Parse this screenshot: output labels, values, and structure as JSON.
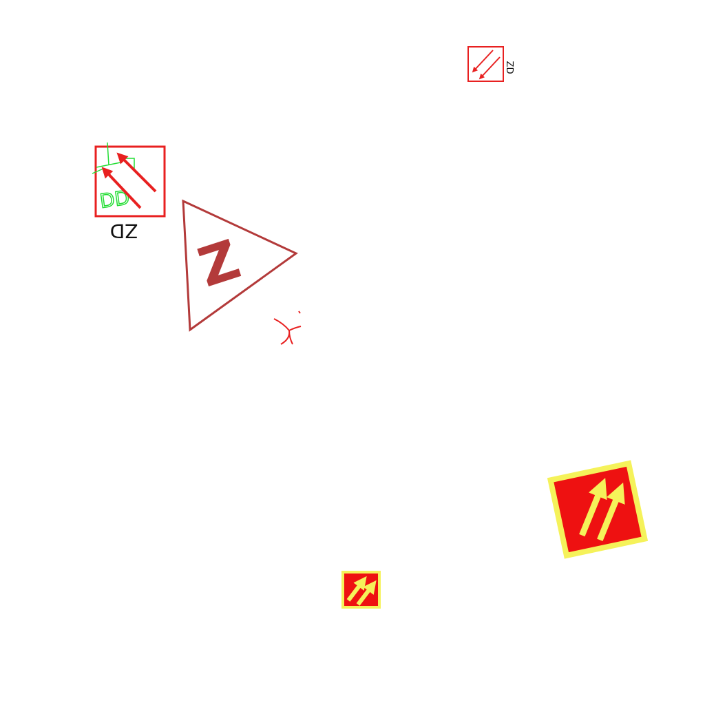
{
  "symbols": [
    {
      "name": "small-red-outline-box",
      "icon": "double-arrow-down-left-icon",
      "label": "ZD",
      "color": "#e82020"
    },
    {
      "name": "large-red-outline-box",
      "icon": "double-arrow-up-left-icon",
      "label": "ZD",
      "color": "#e82020"
    },
    {
      "name": "green-handwritten-mark",
      "text": "DD",
      "color": "#22dd33"
    },
    {
      "name": "triangle-symbol",
      "icon": "triangle-icon",
      "letter": "Z",
      "color": "#b33a3a"
    },
    {
      "name": "red-scribble",
      "icon": "scribble-icon",
      "color": "#e82020"
    },
    {
      "name": "yellow-red-tile-large",
      "icon": "double-arrow-up-right-icon",
      "fill": "#ee1111",
      "border": "#f5f25a"
    },
    {
      "name": "yellow-red-tile-small",
      "icon": "double-arrow-up-right-icon",
      "fill": "#ee1111",
      "border": "#f5f25a"
    }
  ],
  "labels": {
    "box_small": "ZD",
    "box_large": "ZD",
    "green_mark": "DD",
    "triangle_letter": "Z"
  }
}
